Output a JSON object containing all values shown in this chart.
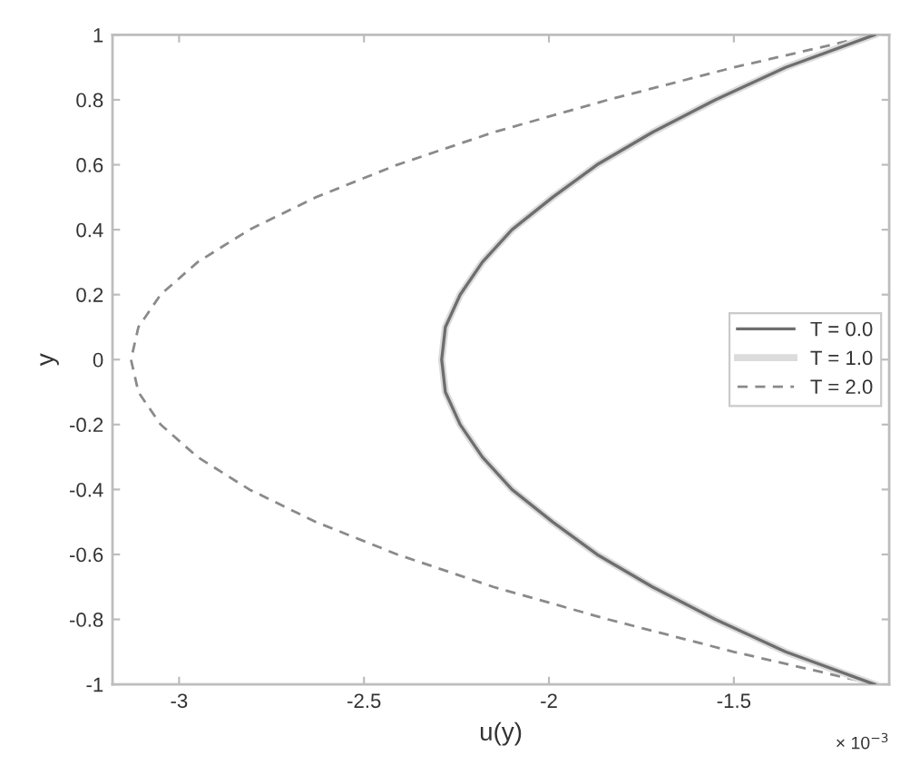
{
  "chart_data": {
    "type": "line",
    "xlabel": "u(y)",
    "ylabel": "y",
    "annotations": [
      "× 10$^{−3}$"
    ],
    "xlim": [
      -3.18,
      -1.08
    ],
    "ylim": [
      -1,
      1
    ],
    "xticks": [
      -3,
      -2.5,
      -2,
      -1.5
    ],
    "yticks": [
      -1,
      -0.8,
      -0.6,
      -0.4,
      -0.2,
      0,
      0.2,
      0.4,
      0.6,
      0.8,
      1
    ],
    "legend": "right",
    "marker": "none",
    "series": [
      {
        "name": "T = 0.0",
        "color": "#6e6e6e",
        "line_style": "solid",
        "x": [
          -1.12,
          -1.36,
          -1.55,
          -1.72,
          -1.87,
          -1.99,
          -2.1,
          -2.18,
          -2.24,
          -2.28,
          -2.29,
          -2.28,
          -2.24,
          -2.18,
          -2.1,
          -1.99,
          -1.87,
          -1.72,
          -1.55,
          -1.36,
          -1.12
        ],
        "values": [
          -1,
          -0.9,
          -0.8,
          -0.7,
          -0.6,
          -0.5,
          -0.4,
          -0.3,
          -0.2,
          -0.1,
          0,
          0.1,
          0.2,
          0.3,
          0.4,
          0.5,
          0.6,
          0.7,
          0.8,
          0.9,
          1
        ]
      },
      {
        "name": "T = 1.0",
        "color": "#dcdcdc",
        "line_style": "solid",
        "x": [
          -1.12,
          -1.36,
          -1.55,
          -1.72,
          -1.87,
          -1.99,
          -2.1,
          -2.18,
          -2.24,
          -2.28,
          -2.29,
          -2.28,
          -2.24,
          -2.18,
          -2.1,
          -1.99,
          -1.87,
          -1.72,
          -1.55,
          -1.36,
          -1.12
        ],
        "values": [
          -1,
          -0.9,
          -0.8,
          -0.7,
          -0.6,
          -0.5,
          -0.4,
          -0.3,
          -0.2,
          -0.1,
          0,
          0.1,
          0.2,
          0.3,
          0.4,
          0.5,
          0.6,
          0.7,
          0.8,
          0.9,
          1
        ]
      },
      {
        "name": "T = 2.0",
        "color": "#8a8a8a",
        "line_style": "dashed",
        "x": [
          -1.12,
          -1.5,
          -1.84,
          -2.15,
          -2.41,
          -2.63,
          -2.81,
          -2.95,
          -3.05,
          -3.11,
          -3.13,
          -3.11,
          -3.05,
          -2.95,
          -2.81,
          -2.63,
          -2.41,
          -2.15,
          -1.84,
          -1.5,
          -1.12
        ],
        "values": [
          -1,
          -0.9,
          -0.8,
          -0.7,
          -0.6,
          -0.5,
          -0.4,
          -0.3,
          -0.2,
          -0.1,
          0,
          0.1,
          0.2,
          0.3,
          0.4,
          0.5,
          0.6,
          0.7,
          0.8,
          0.9,
          1
        ]
      }
    ]
  }
}
